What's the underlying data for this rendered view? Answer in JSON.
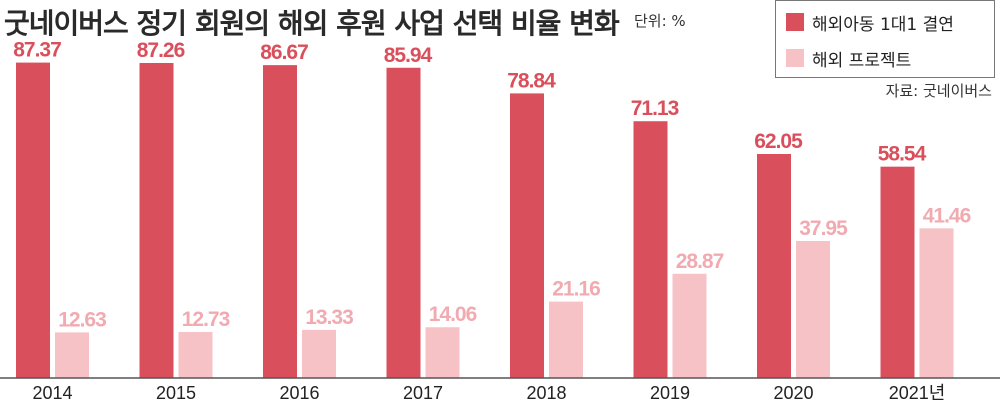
{
  "chart_data": {
    "type": "bar",
    "title": "굿네이버스 정기 회원의 해외 후원 사업 선택 비율 변화",
    "unit_label": "단위: %",
    "source": "자료: 굿네이버스",
    "categories": [
      "2014",
      "2015",
      "2016",
      "2017",
      "2018",
      "2019",
      "2020",
      "2021년"
    ],
    "series": [
      {
        "name": "해외아동 1대1 결연",
        "color": "#d94f5c",
        "label_color": "#d94f5c",
        "values": [
          87.37,
          87.26,
          86.67,
          85.94,
          78.84,
          71.13,
          62.05,
          58.54
        ]
      },
      {
        "name": "해외 프로젝트",
        "color": "#f6c2c6",
        "label_color": "#f2aab1",
        "values": [
          12.63,
          12.73,
          13.33,
          14.06,
          21.16,
          28.87,
          37.95,
          41.46
        ]
      }
    ],
    "ylim": [
      0,
      100
    ],
    "grid": false,
    "legend_position": "top-right"
  }
}
